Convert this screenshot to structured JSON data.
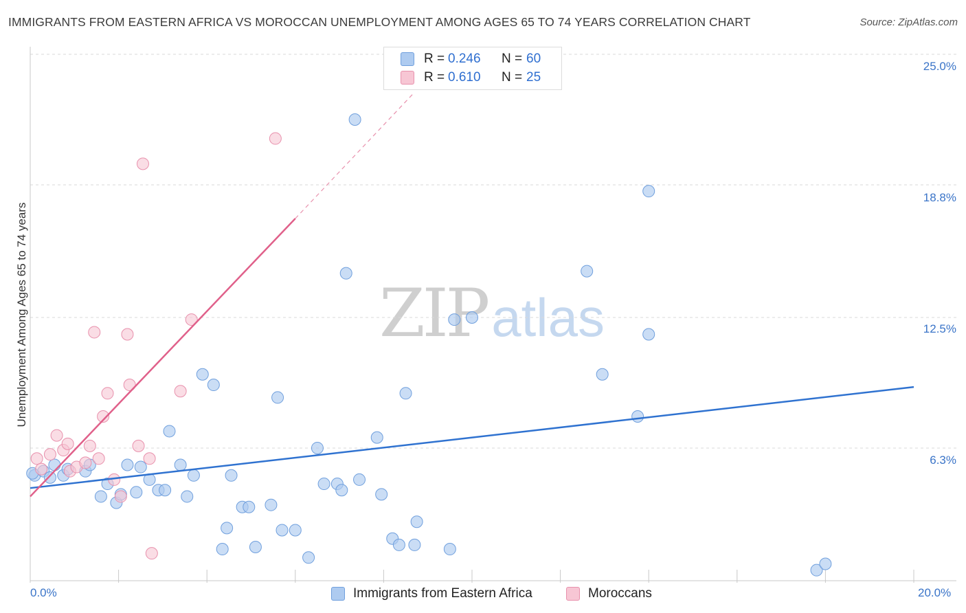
{
  "header": {
    "title": "IMMIGRANTS FROM EASTERN AFRICA VS MOROCCAN UNEMPLOYMENT AMONG AGES 65 TO 74 YEARS CORRELATION CHART",
    "source": "Source: ZipAtlas.com"
  },
  "watermark": {
    "zip": "ZIP",
    "atlas": "atlas"
  },
  "legend_top": {
    "rows": [
      {
        "r_label": "R =",
        "r_value": "0.246",
        "n_label": "N =",
        "n_value": "60"
      },
      {
        "r_label": "R =",
        "r_value": "0.610",
        "n_label": "N =",
        "n_value": "25"
      }
    ]
  },
  "legend_bottom": {
    "items": [
      {
        "label": "Immigrants from Eastern Africa"
      },
      {
        "label": "Moroccans"
      }
    ]
  },
  "colors": {
    "blue_fill": "#aecbf0",
    "blue_stroke": "#6f9fdd",
    "blue_line": "#2f72d0",
    "pink_fill": "#f7c6d4",
    "pink_stroke": "#e890ac",
    "pink_line": "#e0608a",
    "grid": "#d9d9d9",
    "axis_text": "#3a74c8"
  },
  "chart_data": {
    "type": "scatter",
    "title": "IMMIGRANTS FROM EASTERN AFRICA VS MOROCCAN UNEMPLOYMENT AMONG AGES 65 TO 74 YEARS CORRELATION CHART",
    "xlabel": "",
    "ylabel": "Unemployment Among Ages 65 to 74 years",
    "xlim": [
      0,
      20
    ],
    "ylim": [
      0,
      25
    ],
    "x_tick_labels": [
      "0.0%",
      "20.0%"
    ],
    "y_ticks": [
      6.3,
      12.5,
      18.8,
      25.0
    ],
    "y_tick_labels": [
      "6.3%",
      "12.5%",
      "18.8%",
      "25.0%"
    ],
    "grid": true,
    "legend_position": "top-center",
    "series": [
      {
        "name": "Immigrants from Eastern Africa",
        "R": 0.246,
        "N": 60,
        "trend": {
          "x": [
            0.0,
            20.0
          ],
          "y": [
            4.4,
            9.2
          ]
        },
        "points": [
          [
            0.1,
            5.0
          ],
          [
            0.3,
            5.2
          ],
          [
            0.45,
            4.9
          ],
          [
            0.55,
            5.5
          ],
          [
            0.75,
            5.0
          ],
          [
            0.85,
            5.3
          ],
          [
            1.25,
            5.2
          ],
          [
            1.35,
            5.5
          ],
          [
            1.6,
            4.0
          ],
          [
            1.75,
            4.6
          ],
          [
            1.95,
            3.7
          ],
          [
            2.05,
            4.1
          ],
          [
            2.2,
            5.5
          ],
          [
            2.4,
            4.2
          ],
          [
            2.5,
            5.4
          ],
          [
            2.7,
            4.8
          ],
          [
            2.9,
            4.3
          ],
          [
            3.05,
            4.3
          ],
          [
            3.15,
            7.1
          ],
          [
            3.4,
            5.5
          ],
          [
            3.55,
            4.0
          ],
          [
            3.7,
            5.0
          ],
          [
            3.9,
            9.8
          ],
          [
            4.15,
            9.3
          ],
          [
            4.35,
            1.5
          ],
          [
            4.45,
            2.5
          ],
          [
            4.55,
            5.0
          ],
          [
            4.8,
            3.5
          ],
          [
            4.95,
            3.5
          ],
          [
            5.1,
            1.6
          ],
          [
            5.45,
            3.6
          ],
          [
            5.6,
            8.7
          ],
          [
            5.7,
            2.4
          ],
          [
            6.0,
            2.4
          ],
          [
            6.3,
            1.1
          ],
          [
            6.5,
            6.3
          ],
          [
            6.65,
            4.6
          ],
          [
            6.95,
            4.6
          ],
          [
            7.05,
            4.3
          ],
          [
            7.15,
            14.6
          ],
          [
            7.35,
            21.9
          ],
          [
            7.45,
            4.8
          ],
          [
            7.85,
            6.8
          ],
          [
            7.95,
            4.1
          ],
          [
            8.2,
            2.0
          ],
          [
            8.35,
            1.7
          ],
          [
            8.5,
            8.9
          ],
          [
            8.7,
            1.7
          ],
          [
            8.75,
            2.8
          ],
          [
            9.5,
            1.5
          ],
          [
            9.6,
            12.4
          ],
          [
            10.0,
            12.5
          ],
          [
            12.6,
            14.7
          ],
          [
            12.95,
            9.8
          ],
          [
            13.75,
            7.8
          ],
          [
            14.0,
            11.7
          ],
          [
            14.0,
            18.5
          ],
          [
            17.8,
            0.5
          ],
          [
            18.0,
            0.8
          ],
          [
            0.05,
            5.1
          ]
        ]
      },
      {
        "name": "Moroccans",
        "R": 0.61,
        "N": 25,
        "trend": {
          "x": [
            0.0,
            6.0
          ],
          "y": [
            4.0,
            17.2
          ]
        },
        "trend_extension": {
          "x": [
            6.0,
            8.7
          ],
          "y": [
            17.2,
            23.2
          ]
        },
        "points": [
          [
            0.15,
            5.8
          ],
          [
            0.25,
            5.3
          ],
          [
            0.45,
            6.0
          ],
          [
            0.6,
            6.9
          ],
          [
            0.75,
            6.2
          ],
          [
            0.85,
            6.5
          ],
          [
            0.9,
            5.2
          ],
          [
            1.05,
            5.4
          ],
          [
            1.25,
            5.6
          ],
          [
            1.35,
            6.4
          ],
          [
            1.45,
            11.8
          ],
          [
            1.55,
            5.8
          ],
          [
            1.65,
            7.8
          ],
          [
            1.75,
            8.9
          ],
          [
            1.9,
            4.8
          ],
          [
            2.05,
            4.0
          ],
          [
            2.2,
            11.7
          ],
          [
            2.25,
            9.3
          ],
          [
            2.45,
            6.4
          ],
          [
            2.55,
            19.8
          ],
          [
            2.7,
            5.8
          ],
          [
            2.75,
            1.3
          ],
          [
            3.4,
            9.0
          ],
          [
            3.65,
            12.4
          ],
          [
            5.55,
            21.0
          ]
        ]
      }
    ]
  }
}
